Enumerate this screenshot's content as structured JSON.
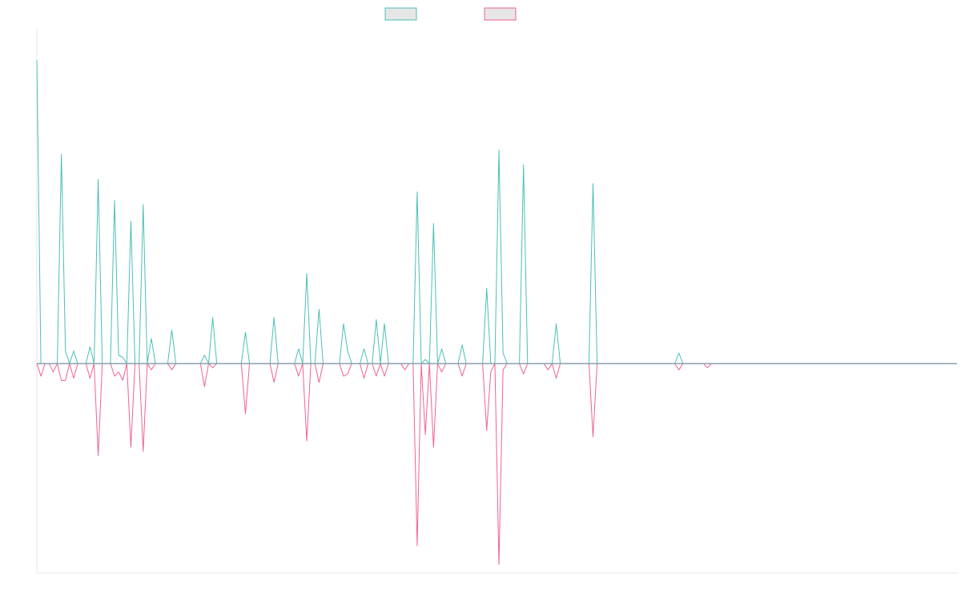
{
  "chart_data": {
    "type": "line",
    "title": "",
    "xlabel": "",
    "ylabel": "",
    "ylim": [
      -1.0,
      1.6
    ],
    "grid": false,
    "legend_position": "top-center",
    "x_count": 226,
    "zero_line_color": "#8aa0b4",
    "axis_color": "#e6e6e6",
    "series": [
      {
        "color": "#4bbfb7",
        "legend_fill": "#e6e6e6",
        "points": [
          [
            0,
            1.45
          ],
          [
            1,
            0
          ],
          [
            3,
            0
          ],
          [
            6,
            1.0
          ],
          [
            7,
            0.06
          ],
          [
            9,
            0.06
          ],
          [
            13,
            0.08
          ],
          [
            15,
            0.88
          ],
          [
            19,
            0.78
          ],
          [
            20,
            0.04
          ],
          [
            21,
            0.03
          ],
          [
            23,
            0.68
          ],
          [
            26,
            0.76
          ],
          [
            28,
            0.12
          ],
          [
            33,
            0.16
          ],
          [
            41,
            0.04
          ],
          [
            43,
            0.22
          ],
          [
            51,
            0.15
          ],
          [
            58,
            0.22
          ],
          [
            64,
            0.07
          ],
          [
            66,
            0.43
          ],
          [
            69,
            0.26
          ],
          [
            75,
            0.19
          ],
          [
            76,
            0.06
          ],
          [
            80,
            0.07
          ],
          [
            83,
            0.21
          ],
          [
            85,
            0.19
          ],
          [
            90,
            0.0
          ],
          [
            93,
            0.82
          ],
          [
            95,
            0.02
          ],
          [
            97,
            0.67
          ],
          [
            99,
            0.07
          ],
          [
            104,
            0.09
          ],
          [
            110,
            0.36
          ],
          [
            111,
            0.0
          ],
          [
            113,
            1.02
          ],
          [
            114,
            0.05
          ],
          [
            119,
            0.95
          ],
          [
            125,
            0.0
          ],
          [
            127,
            0.19
          ],
          [
            136,
            0.86
          ],
          [
            157,
            0.05
          ],
          [
            164,
            0.0
          ]
        ]
      },
      {
        "color": "#f06292",
        "legend_fill": "#e6e6e6",
        "points": [
          [
            1,
            -0.06
          ],
          [
            4,
            -0.04
          ],
          [
            6,
            -0.08
          ],
          [
            7,
            -0.08
          ],
          [
            9,
            -0.07
          ],
          [
            13,
            -0.07
          ],
          [
            15,
            -0.44
          ],
          [
            19,
            -0.06
          ],
          [
            20,
            -0.04
          ],
          [
            21,
            -0.08
          ],
          [
            23,
            -0.4
          ],
          [
            26,
            -0.42
          ],
          [
            28,
            -0.03
          ],
          [
            33,
            -0.03
          ],
          [
            41,
            -0.11
          ],
          [
            43,
            -0.02
          ],
          [
            51,
            -0.24
          ],
          [
            58,
            -0.09
          ],
          [
            64,
            -0.06
          ],
          [
            66,
            -0.37
          ],
          [
            69,
            -0.09
          ],
          [
            75,
            -0.06
          ],
          [
            76,
            -0.05
          ],
          [
            80,
            -0.07
          ],
          [
            83,
            -0.06
          ],
          [
            85,
            -0.06
          ],
          [
            90,
            -0.03
          ],
          [
            93,
            -0.87
          ],
          [
            95,
            -0.34
          ],
          [
            97,
            -0.4
          ],
          [
            99,
            -0.04
          ],
          [
            104,
            -0.06
          ],
          [
            110,
            -0.32
          ],
          [
            111,
            -0.04
          ],
          [
            113,
            -0.96
          ],
          [
            114,
            -0.03
          ],
          [
            119,
            -0.05
          ],
          [
            125,
            -0.03
          ],
          [
            127,
            -0.07
          ],
          [
            136,
            -0.35
          ],
          [
            157,
            -0.03
          ],
          [
            164,
            -0.02
          ]
        ]
      }
    ]
  }
}
